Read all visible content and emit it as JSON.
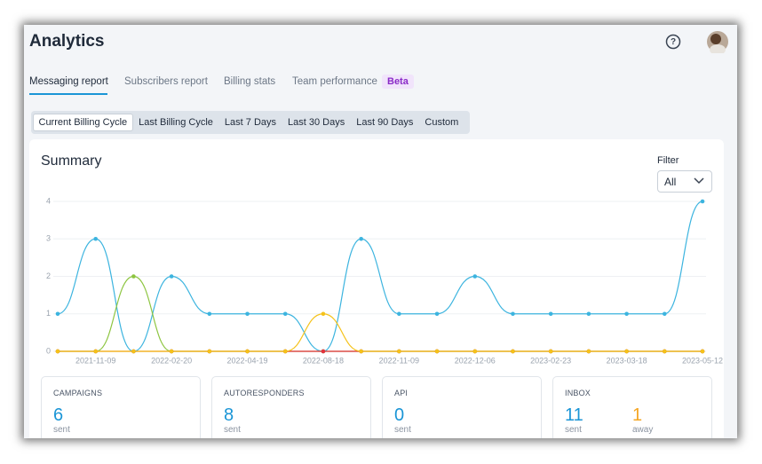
{
  "header": {
    "title": "Analytics"
  },
  "tabs": [
    "Messaging report",
    "Subscribers report",
    "Billing stats",
    "Team performance"
  ],
  "tab_badge": "Beta",
  "periods": [
    "Current Billing Cycle",
    "Last Billing Cycle",
    "Last 7 Days",
    "Last 30 Days",
    "Last 90 Days",
    "Custom"
  ],
  "summary": {
    "title": "Summary",
    "filter_label": "Filter",
    "filter_value": "All"
  },
  "chart_data": {
    "type": "line",
    "categories": [
      null,
      "2021-11-09",
      null,
      "2022-02-20",
      null,
      "2022-04-19",
      null,
      "2022-08-18",
      null,
      "2022-11-09",
      null,
      "2022-12-06",
      null,
      "2023-02-23",
      null,
      "2023-03-18",
      null,
      "2023-05-12"
    ],
    "series": [
      {
        "color": "#3cb4df",
        "values": [
          1,
          3,
          0,
          2,
          1,
          1,
          1,
          0,
          3,
          1,
          1,
          2,
          1,
          1,
          1,
          1,
          1,
          4
        ]
      },
      {
        "color": "#8dc540",
        "values": [
          0,
          0,
          2,
          0,
          0,
          0,
          0,
          0,
          0,
          0,
          0,
          0,
          0,
          0,
          0,
          0,
          0,
          0
        ]
      },
      {
        "color": "#e5323d",
        "values": [
          0,
          0,
          0,
          0,
          0,
          0,
          0,
          0,
          0,
          0,
          0,
          0,
          0,
          0,
          0,
          0,
          0,
          0
        ]
      },
      {
        "color": "#f5c21a",
        "values": [
          0,
          0,
          0,
          0,
          0,
          0,
          0,
          1,
          0,
          0,
          0,
          0,
          0,
          0,
          0,
          0,
          0,
          0
        ]
      }
    ],
    "ylim": [
      0,
      4
    ],
    "yticks": [
      0,
      1,
      2,
      3,
      4
    ],
    "grid": true
  },
  "stats": [
    {
      "label": "CAMPAIGNS",
      "items": [
        {
          "value": 6,
          "unit": "sent"
        }
      ]
    },
    {
      "label": "AUTORESPONDERS",
      "items": [
        {
          "value": 8,
          "unit": "sent"
        }
      ]
    },
    {
      "label": "API",
      "items": [
        {
          "value": 0,
          "unit": "sent"
        }
      ]
    },
    {
      "label": "INBOX",
      "items": [
        {
          "value": 11,
          "unit": "sent"
        },
        {
          "value": 1,
          "unit": "away"
        }
      ]
    }
  ]
}
